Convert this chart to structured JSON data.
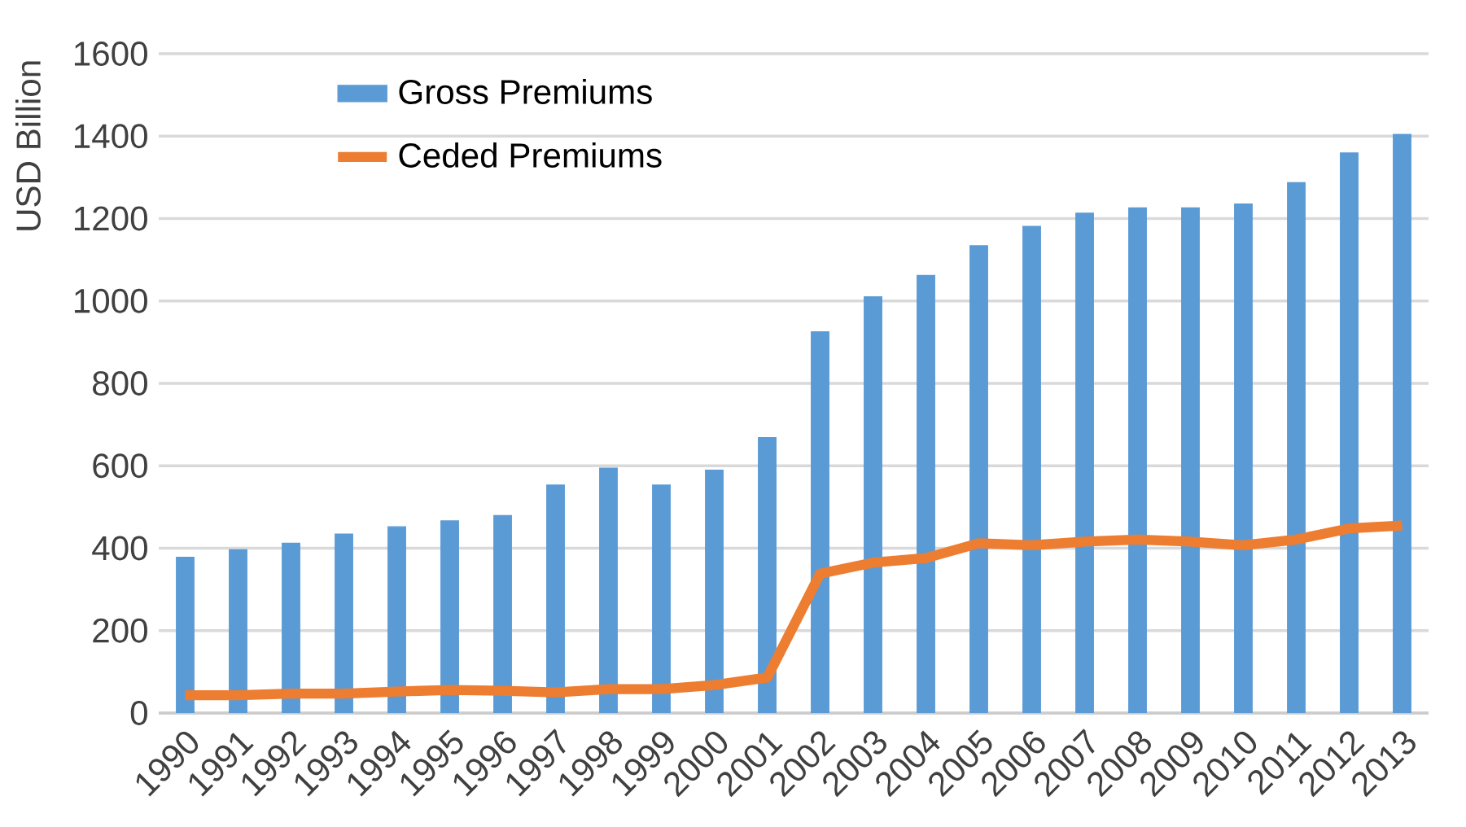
{
  "chart_data": {
    "type": "bar",
    "ylabel": "USD Billion",
    "categories": [
      "1990",
      "1991",
      "1992",
      "1993",
      "1994",
      "1995",
      "1996",
      "1997",
      "1998",
      "1999",
      "2000",
      "2001",
      "2002",
      "2003",
      "2004",
      "2005",
      "2006",
      "2007",
      "2008",
      "2009",
      "2010",
      "2011",
      "2012",
      "2013"
    ],
    "series": [
      {
        "name": "Gross Premiums",
        "color": "#5b9bd5",
        "values": [
          378,
          396,
          412,
          434,
          452,
          466,
          479,
          553,
          594,
          553,
          589,
          668,
          925,
          1010,
          1062,
          1134,
          1181,
          1213,
          1226,
          1226,
          1235,
          1287,
          1359,
          1404
        ]
      },
      {
        "name": "Ceded Premiums",
        "type": "line",
        "color": "#ed7d31",
        "values": [
          43,
          43,
          47,
          47,
          52,
          56,
          54,
          50,
          58,
          58,
          68,
          86,
          338,
          365,
          376,
          412,
          407,
          416,
          421,
          416,
          407,
          421,
          448,
          455
        ]
      }
    ],
    "ylim": [
      0,
      1600
    ],
    "yticks": [
      0,
      200,
      400,
      600,
      800,
      1000,
      1200,
      1400,
      1600
    ],
    "grid": "y",
    "legend": "top left",
    "marker": "none",
    "line_style": "solid"
  }
}
